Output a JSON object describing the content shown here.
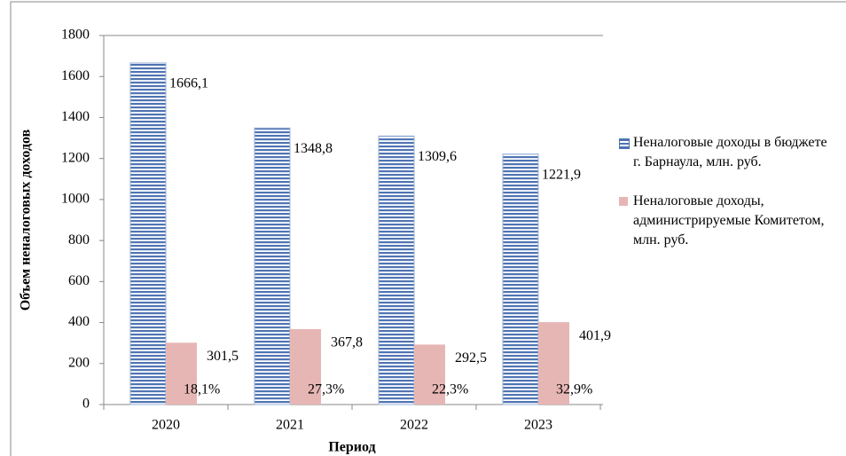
{
  "chart_data": {
    "type": "bar",
    "categories": [
      "2020",
      "2021",
      "2022",
      "2023"
    ],
    "series": [
      {
        "name": "Неналоговые доходы в бюджете г. Барнаула, млн. руб.",
        "color": "#4f74b3",
        "values": [
          1666.1,
          1348.8,
          1309.6,
          1221.9
        ],
        "value_labels": [
          "1666,1",
          "1348,8",
          "1309,6",
          "1221,9"
        ]
      },
      {
        "name": "Неналоговые доходы, администрируемые Комитетом, млн. руб.",
        "color": "#e6b6b5",
        "values": [
          301.5,
          367.8,
          292.5,
          401.9
        ],
        "value_labels": [
          "301,5",
          "367,8",
          "292,5",
          "401,9"
        ]
      }
    ],
    "annotations": [
      "18,1%",
      "27,3%",
      "22,3%",
      "32,9%"
    ],
    "xlabel": "Период",
    "ylabel": "Объем неналоговых доходов",
    "ylim": [
      0,
      1800
    ],
    "yticks": [
      0,
      200,
      400,
      600,
      800,
      1000,
      1200,
      1400,
      1600,
      1800
    ],
    "grid": false,
    "legend": "right"
  }
}
